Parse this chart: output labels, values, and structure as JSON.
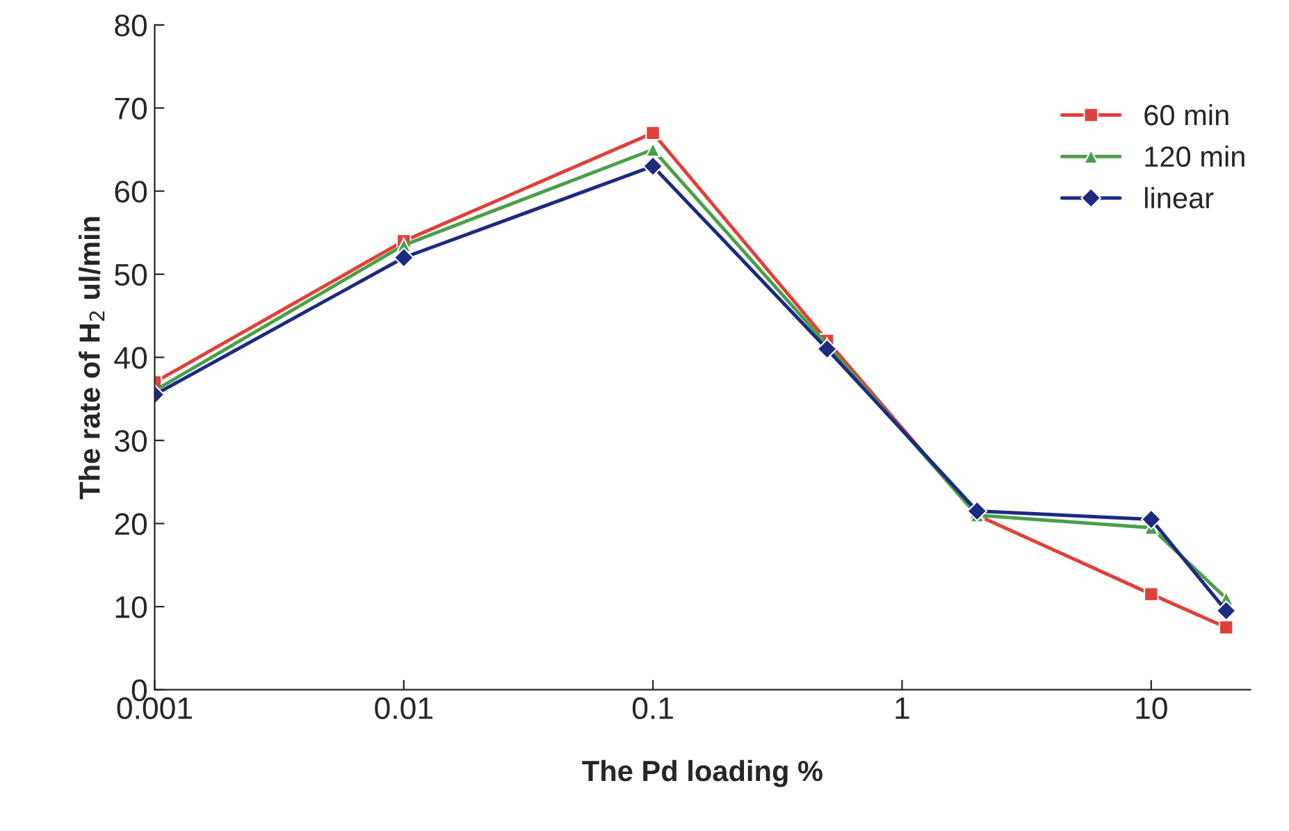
{
  "chart_data": {
    "type": "line",
    "xlabel": "The Pd loading %",
    "ylabel": "The rate of H$_{2}$ ul/min",
    "x": [
      0.001,
      0.01,
      0.1,
      0.5,
      2,
      10,
      20
    ],
    "series": [
      {
        "name": "60 min",
        "color": "#e0403a",
        "marker": "square",
        "values": [
          37,
          54,
          67,
          42,
          21,
          11.5,
          7.5
        ]
      },
      {
        "name": "120 min",
        "color": "#4aa04a",
        "marker": "triangle",
        "values": [
          36,
          53.5,
          65,
          41.5,
          21,
          19.5,
          11
        ]
      },
      {
        "name": "linear",
        "color": "#1c2a80",
        "marker": "diamond",
        "values": [
          35.5,
          52,
          63,
          41,
          21.5,
          20.5,
          9.5
        ]
      }
    ],
    "log": "x",
    "xlim": [
      0.001,
      25
    ],
    "xticks": [
      0.001,
      0.01,
      0.1,
      1,
      10
    ],
    "ylim": [
      0,
      80
    ],
    "yticks": [
      0,
      10,
      20,
      30,
      40,
      50,
      60,
      70,
      80
    ],
    "grid": false,
    "legend": "top right",
    "line_style": "solid"
  }
}
